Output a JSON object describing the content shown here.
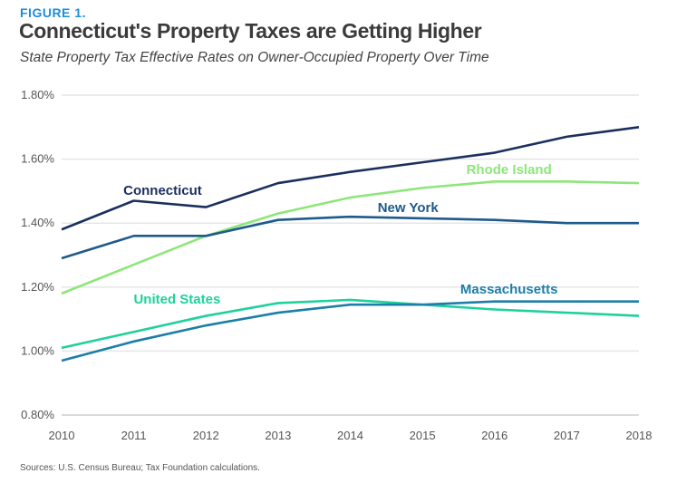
{
  "chart_data": {
    "type": "line",
    "figure_label": "FIGURE 1.",
    "title": "Connecticut's Property Taxes are Getting Higher",
    "subtitle": "State Property Tax Effective Rates on Owner-Occupied Property Over Time",
    "source": "Sources: U.S. Census Bureau; Tax Foundation calculations.",
    "x": [
      2010,
      2011,
      2012,
      2013,
      2014,
      2015,
      2016,
      2017,
      2018
    ],
    "ylim": [
      0.8,
      1.8
    ],
    "yticks": [
      "0.80%",
      "1.00%",
      "1.20%",
      "1.40%",
      "1.60%",
      "1.80%"
    ],
    "ytick_values": [
      0.8,
      1.0,
      1.2,
      1.4,
      1.6,
      1.8
    ],
    "grid": true,
    "series": [
      {
        "name": "Connecticut",
        "color": "#1b2f5e",
        "values": [
          1.38,
          1.47,
          1.45,
          1.525,
          1.56,
          1.59,
          1.62,
          1.67,
          1.7
        ]
      },
      {
        "name": "Rhode Island",
        "color": "#8ee67a",
        "values": [
          1.18,
          1.27,
          1.36,
          1.43,
          1.48,
          1.51,
          1.53,
          1.53,
          1.525
        ]
      },
      {
        "name": "New York",
        "color": "#1f5a8c",
        "values": [
          1.29,
          1.36,
          1.36,
          1.41,
          1.42,
          1.415,
          1.41,
          1.4,
          1.4
        ]
      },
      {
        "name": "United States",
        "color": "#1fd19a",
        "values": [
          1.01,
          1.06,
          1.11,
          1.15,
          1.16,
          1.145,
          1.13,
          1.12,
          1.11
        ]
      },
      {
        "name": "Massachusetts",
        "color": "#1d7ea8",
        "values": [
          0.97,
          1.03,
          1.08,
          1.12,
          1.145,
          1.145,
          1.155,
          1.155,
          1.155
        ]
      }
    ]
  }
}
